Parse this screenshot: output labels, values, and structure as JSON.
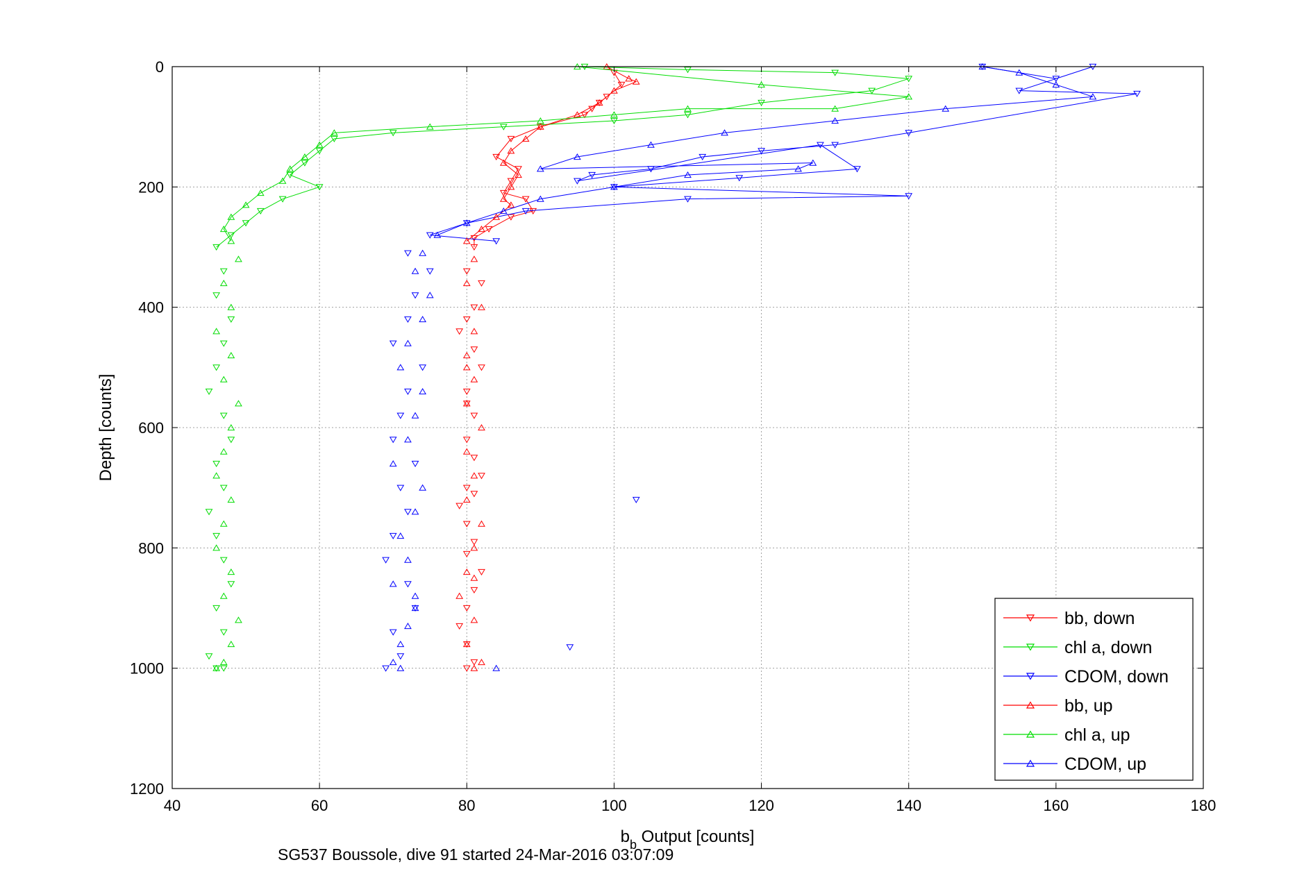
{
  "chart_data": {
    "type": "scatter",
    "xlabel_main": "b",
    "xlabel_sub": "b",
    "xlabel_rest": " Output [counts]",
    "ylabel": "Depth [counts]",
    "xlim": [
      40,
      180
    ],
    "ylim": [
      0,
      1200
    ],
    "y_reversed": true,
    "xticks": [
      40,
      60,
      80,
      100,
      120,
      140,
      160,
      180
    ],
    "yticks": [
      0,
      200,
      400,
      600,
      800,
      1000,
      1200
    ],
    "grid": true,
    "legend_position": "bottom-right",
    "series": [
      {
        "name": "bb, down",
        "color": "#ff0000",
        "marker": "triangle-down",
        "x": [
          100,
          101,
          99,
          98,
          97,
          96,
          90,
          86,
          84,
          87,
          86,
          85,
          88,
          89,
          86,
          83,
          81,
          81,
          80,
          82,
          81,
          80,
          81,
          82,
          80,
          81,
          80,
          81,
          82,
          80,
          79,
          80,
          81,
          80,
          82,
          81,
          80,
          79,
          80,
          81,
          80,
          79,
          80,
          81
        ],
        "y": [
          10,
          30,
          50,
          60,
          70,
          80,
          100,
          120,
          150,
          170,
          190,
          210,
          220,
          240,
          250,
          270,
          285,
          300,
          340,
          360,
          400,
          420,
          470,
          500,
          540,
          580,
          620,
          650,
          680,
          700,
          730,
          760,
          790,
          810,
          840,
          870,
          900,
          930,
          960,
          990,
          1000,
          440,
          560,
          710
        ]
      },
      {
        "name": "chl a, down",
        "color": "#00dd00",
        "marker": "triangle-down",
        "x": [
          96,
          110,
          130,
          140,
          135,
          120,
          110,
          100,
          85,
          70,
          62,
          60,
          58,
          56,
          60,
          55,
          52,
          50,
          48,
          46,
          47,
          46,
          48,
          47,
          46,
          45,
          47,
          48,
          46,
          47,
          45,
          46,
          47,
          48,
          46,
          47,
          45,
          46,
          47
        ],
        "y": [
          0,
          5,
          10,
          20,
          40,
          60,
          80,
          90,
          100,
          110,
          120,
          140,
          160,
          180,
          200,
          220,
          240,
          260,
          280,
          300,
          340,
          380,
          420,
          460,
          500,
          540,
          580,
          620,
          660,
          700,
          740,
          780,
          820,
          860,
          900,
          940,
          980,
          1000,
          1000
        ]
      },
      {
        "name": "CDOM, down",
        "color": "#0000ff",
        "marker": "triangle-down",
        "x": [
          150,
          160,
          165,
          155,
          171,
          140,
          130,
          120,
          112,
          105,
          97,
          95,
          128,
          133,
          117,
          100,
          140,
          110,
          88,
          80,
          75,
          84,
          72,
          75,
          73,
          72,
          70,
          74,
          72,
          71,
          70,
          73,
          71,
          72,
          70,
          69,
          72,
          73,
          70,
          71,
          69,
          103,
          94
        ],
        "y": [
          0,
          20,
          0,
          40,
          45,
          110,
          130,
          140,
          150,
          170,
          180,
          190,
          130,
          170,
          185,
          200,
          215,
          220,
          240,
          260,
          280,
          290,
          310,
          340,
          380,
          420,
          460,
          500,
          540,
          580,
          620,
          660,
          700,
          740,
          780,
          820,
          860,
          900,
          940,
          980,
          1000,
          720,
          965
        ]
      },
      {
        "name": "bb, up",
        "color": "#ff0000",
        "marker": "triangle-up",
        "x": [
          99,
          102,
          103,
          100,
          98,
          95,
          90,
          88,
          86,
          85,
          87,
          86,
          85,
          86,
          84,
          82,
          80,
          81,
          80,
          82,
          81,
          80,
          81,
          80,
          82,
          80,
          81,
          80,
          82,
          81,
          80,
          79,
          81,
          80,
          82,
          81,
          80,
          81
        ],
        "y": [
          0,
          20,
          25,
          40,
          60,
          80,
          100,
          120,
          140,
          160,
          180,
          200,
          220,
          230,
          250,
          270,
          290,
          320,
          360,
          400,
          440,
          480,
          520,
          560,
          600,
          640,
          680,
          720,
          760,
          800,
          840,
          880,
          920,
          960,
          990,
          1000,
          500,
          850
        ]
      },
      {
        "name": "chl a, up",
        "color": "#00dd00",
        "marker": "triangle-up",
        "x": [
          95,
          120,
          140,
          130,
          110,
          100,
          90,
          75,
          62,
          60,
          58,
          56,
          55,
          52,
          50,
          48,
          47,
          48,
          49,
          47,
          48,
          46,
          48,
          47,
          49,
          48,
          47,
          46,
          48,
          47,
          46,
          48,
          47,
          49,
          48,
          47,
          46
        ],
        "y": [
          0,
          30,
          50,
          70,
          70,
          80,
          90,
          100,
          110,
          130,
          150,
          170,
          190,
          210,
          230,
          250,
          270,
          290,
          320,
          360,
          400,
          440,
          480,
          520,
          560,
          600,
          640,
          680,
          720,
          760,
          800,
          840,
          880,
          920,
          960,
          990,
          1000
        ]
      },
      {
        "name": "CDOM, up",
        "color": "#0000ff",
        "marker": "triangle-up",
        "x": [
          150,
          155,
          160,
          165,
          145,
          130,
          115,
          105,
          95,
          90,
          127,
          125,
          110,
          100,
          90,
          85,
          80,
          76,
          74,
          73,
          75,
          74,
          72,
          71,
          74,
          73,
          72,
          70,
          74,
          73,
          71,
          72,
          70,
          73,
          72,
          71,
          70,
          71,
          73,
          84
        ],
        "y": [
          0,
          10,
          30,
          50,
          70,
          90,
          110,
          130,
          150,
          170,
          160,
          170,
          180,
          200,
          220,
          240,
          260,
          280,
          310,
          340,
          380,
          420,
          460,
          500,
          540,
          580,
          620,
          660,
          700,
          740,
          780,
          820,
          860,
          900,
          930,
          960,
          990,
          1000,
          880,
          1000
        ]
      }
    ]
  },
  "footer_text": "SG537 Boussole, dive 91 started 24-Mar-2016 03:07:09"
}
